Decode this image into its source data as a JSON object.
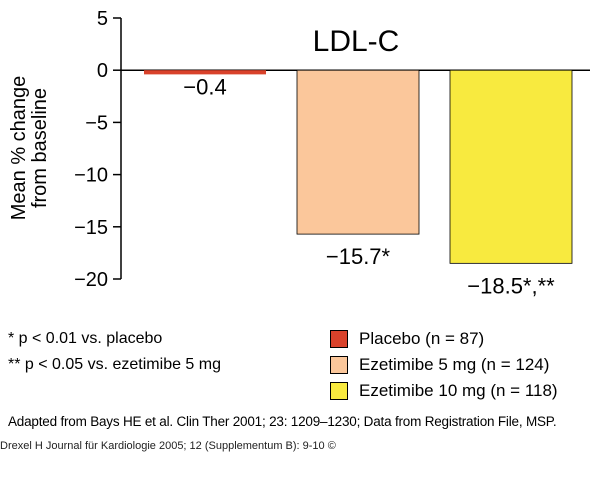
{
  "chart_data": {
    "type": "bar",
    "title": "LDL-C",
    "ylabel": "Mean % change\nfrom baseline",
    "ylabel_lines": [
      "Mean % change",
      "from baseline"
    ],
    "xlabel": "",
    "ylim": [
      -20,
      5
    ],
    "yticks": [
      5,
      0,
      -5,
      -10,
      -15,
      -20
    ],
    "ytick_labels": [
      "5",
      "0",
      "−5",
      "−10",
      "−15",
      "−20"
    ],
    "grid": false,
    "categories": [
      "Placebo (n = 87)",
      "Ezetimibe 5 mg (n = 124)",
      "Ezetimibe 10 mg (n = 118)"
    ],
    "values": [
      -0.4,
      -15.7,
      -18.5
    ],
    "data_labels": [
      "−0.4",
      "−15.7*",
      "−18.5*,**"
    ],
    "colors": [
      "#d9422b",
      "#fbc79b",
      "#f8ea3f"
    ],
    "legend_placement": "bottom-right"
  },
  "footnotes": [
    "*   p < 0.01 vs. placebo",
    "** p < 0.05 vs. ezetimibe 5 mg"
  ],
  "legend": [
    {
      "label": "Placebo (n = 87)",
      "color": "#d9422b"
    },
    {
      "label": "Ezetimibe 5 mg (n = 124)",
      "color": "#fbc79b"
    },
    {
      "label": "Ezetimibe 10 mg (n = 118)",
      "color": "#f8ea3f"
    }
  ],
  "source_note": "Adapted from Bays HE et al. Clin Ther 2001; 23: 1209–1230; Data from Registration File, MSP.",
  "citation": "Drexel H Journal für Kardiologie 2005; 12 (Supplementum B): 9-10 ©"
}
